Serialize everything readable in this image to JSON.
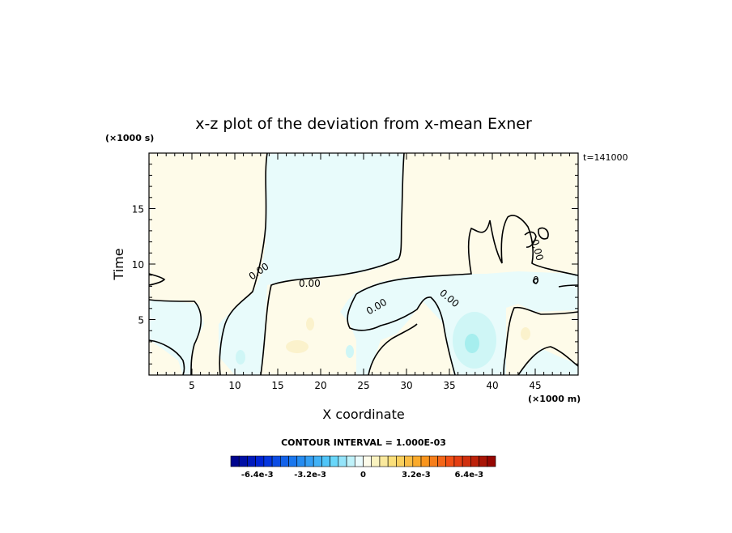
{
  "chart_data": {
    "type": "heatmap",
    "title": "x-z plot of the deviation from x-mean Exner",
    "xlabel": "X coordinate",
    "ylabel": "Time",
    "x_unit": "(×1000 m)",
    "y_unit": "(×1000 s)",
    "time_stamp": "t=141000",
    "xlim": [
      0,
      50
    ],
    "ylim": [
      0,
      20
    ],
    "x_ticks": [
      5,
      10,
      15,
      20,
      25,
      30,
      35,
      40,
      45
    ],
    "y_ticks": [
      5,
      10,
      15
    ],
    "contour_interval_text": "CONTOUR INTERVAL = 1.000E-03",
    "contour_labels": [
      "0.00",
      "0.00",
      "0.00",
      "0.00",
      "0.00",
      "0.00",
      "0"
    ],
    "colorbar": {
      "range": [
        -0.008,
        0.008
      ],
      "n_bins": 32,
      "tick_labels": [
        "-6.4e-3",
        "-3.2e-3",
        "0",
        "3.2e-3",
        "6.4e-3"
      ],
      "tick_values": [
        -0.0064,
        -0.0032,
        0,
        0.0032,
        0.0064
      ]
    },
    "regions": [
      {
        "sign": "positive",
        "description": "x 0–7, t 8–20"
      },
      {
        "sign": "negative",
        "description": "x 13–29, t 10–20"
      },
      {
        "sign": "positive",
        "description": "x 29–50, t 10–20"
      },
      {
        "sign": "negative",
        "description": "x 22–50, t 5–10 band"
      },
      {
        "sign": "negative",
        "description": "x 33–42, t 0–6 (min near x 37.5, t 3)"
      }
    ]
  }
}
